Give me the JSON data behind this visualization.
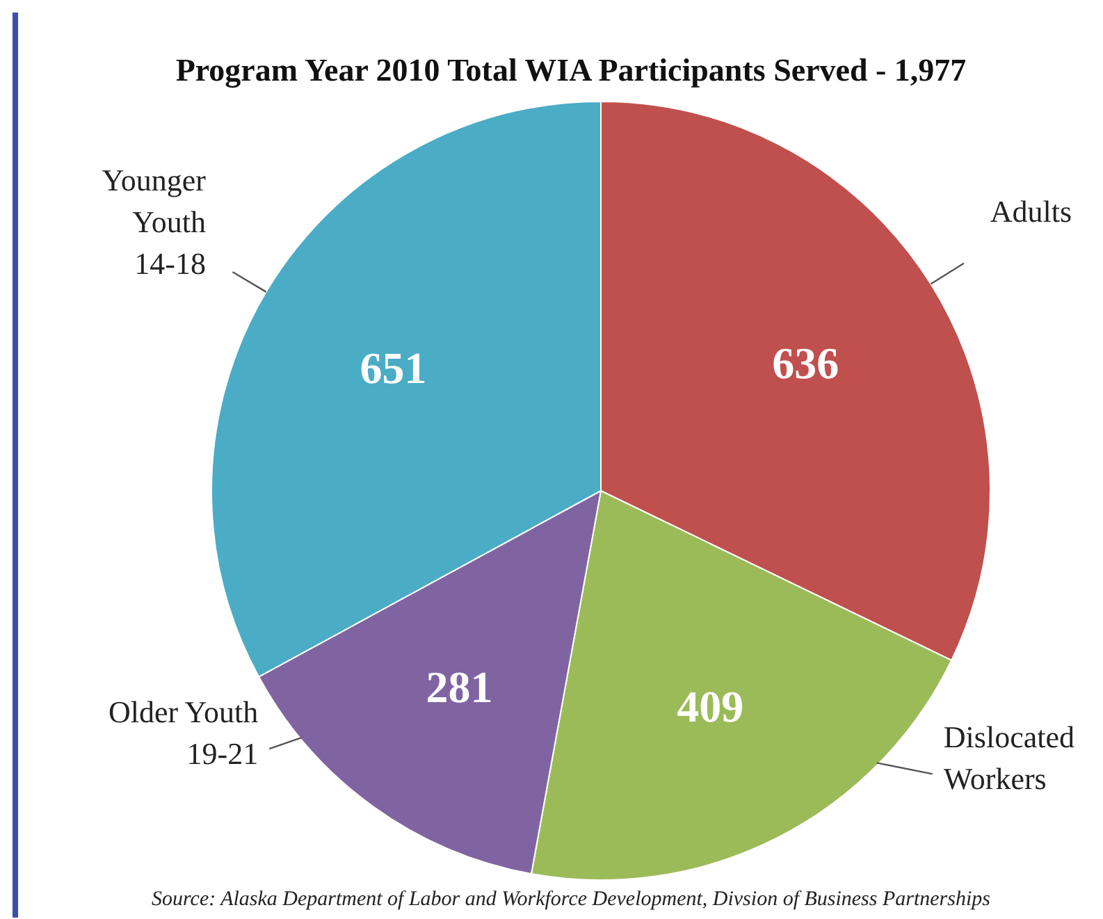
{
  "chart_data": {
    "type": "pie",
    "title": "Program Year 2010 Total WIA Participants Served - 1,977",
    "categories": [
      "Adults",
      "Dislocated\nWorkers",
      "Older Youth\n19-21",
      "Younger\nYouth\n14-18"
    ],
    "values": [
      636,
      409,
      281,
      651
    ],
    "colors": [
      "#c0504d",
      "#9bbb59",
      "#8064a2",
      "#4bacc6"
    ],
    "data_labels": true,
    "legend": false,
    "annotations": [
      "Source: Alaska Department of  Labor and Workforce Development, Divsion of  Business Partnerships"
    ]
  }
}
